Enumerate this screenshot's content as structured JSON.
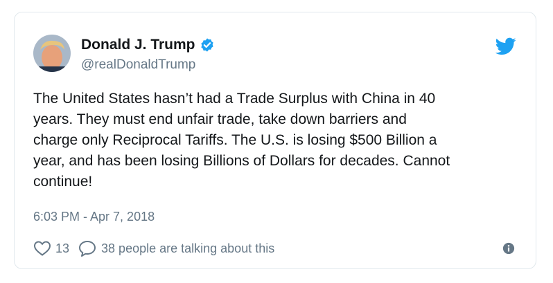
{
  "author": {
    "name": "Donald J. Trump",
    "handle": "@realDonaldTrump"
  },
  "tweet": {
    "text": "The United States hasn’t had a Trade Surplus with China in 40\nyears. They must end unfair trade, take down barriers and\ncharge only Reciprocal Tariffs. The U.S. is losing $500 Billion a\nyear, and has been losing Billions of Dollars for decades. Cannot\ncontinue!",
    "timestamp": "6:03 PM - Apr 7, 2018"
  },
  "actions": {
    "like_count": "13",
    "talking_text": "38 people are talking about this"
  },
  "icons": {
    "verified": "verified-badge-icon",
    "logo": "twitter-bird-icon",
    "like": "heart-icon",
    "reply": "speech-bubble-icon",
    "info": "info-icon"
  },
  "colors": {
    "brand_blue": "#1da1f2",
    "muted_text": "#657786",
    "border": "#e1e8ed"
  }
}
